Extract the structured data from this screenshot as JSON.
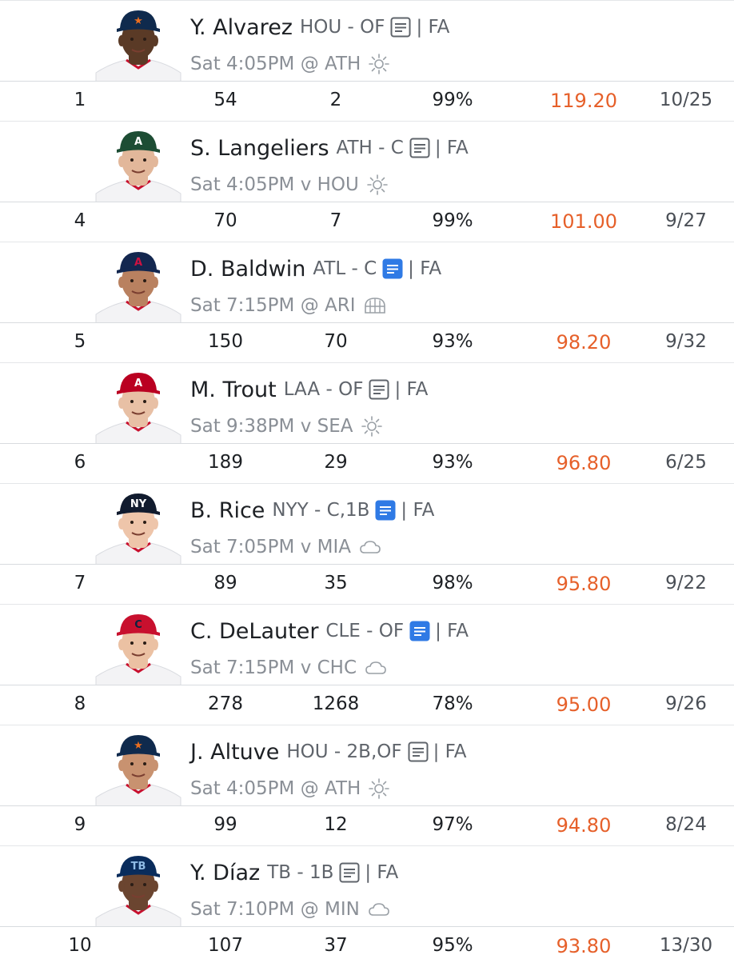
{
  "colors": {
    "accent_orange": "#e6602a",
    "note_active_blue": "#2f7ae5",
    "text_primary": "#1d2024",
    "text_secondary": "#5f646b",
    "divider": "#e4e6e9"
  },
  "players": [
    {
      "name": "Y. Alvarez",
      "team_pos": "HOU - OF",
      "news": "note-icon",
      "news_active": false,
      "status": "| FA",
      "game": "Sat 4:05PM @ ATH",
      "weather": "sun-icon",
      "cap": "#0f2a4d",
      "logo": "★",
      "logo_color": "#eb6e1f",
      "skin": "#5a3a26",
      "rank": "1",
      "stat1": "54",
      "stat2": "2",
      "pct": "99%",
      "points": "119.20",
      "ratio": "10/25"
    },
    {
      "name": "S. Langeliers",
      "team_pos": "ATH - C",
      "news": "note-icon",
      "news_active": false,
      "status": "| FA",
      "game": "Sat 4:05PM v HOU",
      "weather": "sun-icon",
      "cap": "#1d4d34",
      "logo": "A",
      "logo_color": "#ffffff",
      "skin": "#e2b79a",
      "rank": "4",
      "stat1": "70",
      "stat2": "7",
      "pct": "99%",
      "points": "101.00",
      "ratio": "9/27"
    },
    {
      "name": "D. Baldwin",
      "team_pos": "ATL - C",
      "news": "note-icon",
      "news_active": true,
      "status": "| FA",
      "game": "Sat 7:15PM @ ARI",
      "weather": "dome-icon",
      "cap": "#13274f",
      "logo": "A",
      "logo_color": "#ce1141",
      "skin": "#b98160",
      "rank": "5",
      "stat1": "150",
      "stat2": "70",
      "pct": "93%",
      "points": "98.20",
      "ratio": "9/32"
    },
    {
      "name": "M. Trout",
      "team_pos": "LAA - OF",
      "news": "note-icon",
      "news_active": false,
      "status": "| FA",
      "game": "Sat 9:38PM v SEA",
      "weather": "sun-icon",
      "cap": "#ba0021",
      "logo": "A",
      "logo_color": "#ffffff",
      "skin": "#e8c0a5",
      "rank": "6",
      "stat1": "189",
      "stat2": "29",
      "pct": "93%",
      "points": "96.80",
      "ratio": "6/25"
    },
    {
      "name": "B. Rice",
      "team_pos": "NYY - C,1B",
      "news": "note-icon",
      "news_active": true,
      "status": "| FA",
      "game": "Sat 7:05PM v MIA",
      "weather": "cloud-icon",
      "cap": "#111b2e",
      "logo": "NY",
      "logo_color": "#ffffff",
      "skin": "#eec5aa",
      "rank": "7",
      "stat1": "89",
      "stat2": "35",
      "pct": "98%",
      "points": "95.80",
      "ratio": "9/22"
    },
    {
      "name": "C. DeLauter",
      "team_pos": "CLE - OF",
      "news": "note-icon",
      "news_active": true,
      "status": "| FA",
      "game": "Sat 7:15PM v CHC",
      "weather": "cloud-icon",
      "cap": "#c8102e",
      "logo": "C",
      "logo_color": "#0c2340",
      "skin": "#ebc1a3",
      "rank": "8",
      "stat1": "278",
      "stat2": "1268",
      "pct": "78%",
      "points": "95.00",
      "ratio": "9/26"
    },
    {
      "name": "J. Altuve",
      "team_pos": "HOU - 2B,OF",
      "news": "note-icon",
      "news_active": false,
      "status": "| FA",
      "game": "Sat 4:05PM @ ATH",
      "weather": "sun-icon",
      "cap": "#0f2a4d",
      "logo": "★",
      "logo_color": "#eb6e1f",
      "skin": "#c89270",
      "rank": "9",
      "stat1": "99",
      "stat2": "12",
      "pct": "97%",
      "points": "94.80",
      "ratio": "8/24"
    },
    {
      "name": "Y. Díaz",
      "team_pos": "TB - 1B",
      "news": "note-icon",
      "news_active": false,
      "status": "| FA",
      "game": "Sat 7:10PM @ MIN",
      "weather": "cloud-icon",
      "cap": "#092c5c",
      "logo": "TB",
      "logo_color": "#8fbce6",
      "skin": "#6b4530",
      "rank": "10",
      "stat1": "107",
      "stat2": "37",
      "pct": "95%",
      "points": "93.80",
      "ratio": "13/30"
    }
  ]
}
